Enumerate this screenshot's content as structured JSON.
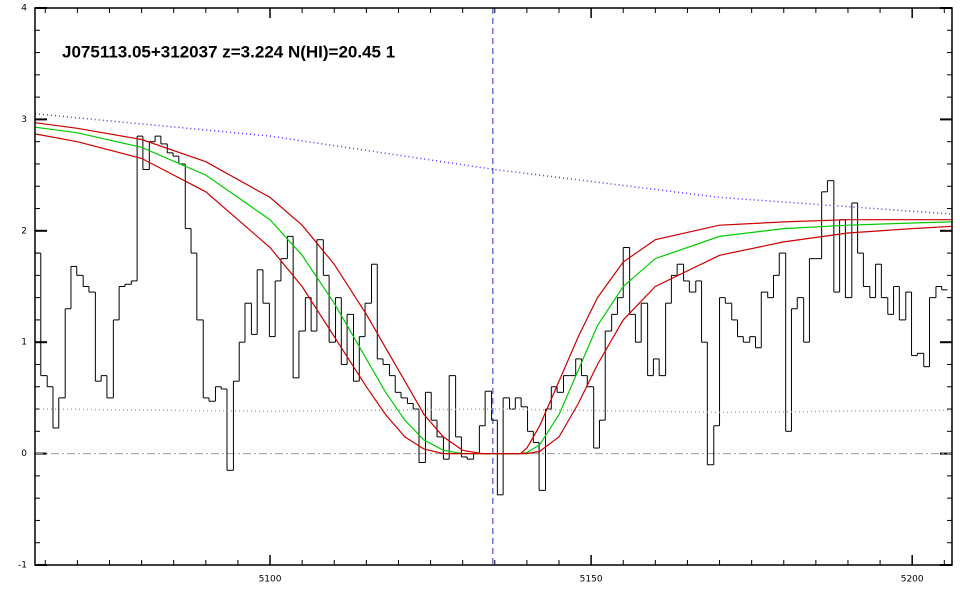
{
  "chart_data": {
    "type": "line",
    "title": "J075113.05+312037 z=3.224 N(HI)=20.45 1",
    "xlim": [
      5063.4,
      5206.2
    ],
    "ylim": [
      -1,
      4
    ],
    "xticks": [
      5100,
      5150,
      5200
    ],
    "yticks": [
      -1,
      0,
      1,
      2,
      3,
      4
    ],
    "minor_ticks": {
      "x": 10,
      "y": 5
    },
    "vline": {
      "value": 5134.7,
      "color": "#2030d0"
    },
    "hline": {
      "value": 0,
      "color": "#999999"
    },
    "series": [
      {
        "color": "#000000",
        "style": "steps",
        "x": [
          5063.4,
          5064.3,
          5065.3,
          5066.2,
          5067.1,
          5068.1,
          5069.0,
          5069.9,
          5070.9,
          5071.8,
          5072.8,
          5073.7,
          5074.6,
          5075.6,
          5076.5,
          5077.4,
          5078.4,
          5079.3,
          5080.2,
          5081.2,
          5082.1,
          5083.0,
          5084.0,
          5084.9,
          5085.8,
          5086.8,
          5087.7,
          5088.6,
          5089.6,
          5090.5,
          5091.5,
          5092.4,
          5093.3,
          5094.3,
          5095.2,
          5096.1,
          5097.1,
          5098.0,
          5098.9,
          5099.9,
          5100.8,
          5101.7,
          5102.7,
          5103.6,
          5104.5,
          5105.5,
          5106.4,
          5107.3,
          5108.3,
          5109.2,
          5110.2,
          5111.1,
          5112.0,
          5113.0,
          5113.9,
          5114.8,
          5115.8,
          5116.7,
          5117.6,
          5118.6,
          5119.5,
          5120.4,
          5121.4,
          5122.3,
          5123.2,
          5124.2,
          5125.1,
          5126.0,
          5127.0,
          5127.9,
          5128.9,
          5129.8,
          5130.7,
          5131.7,
          5132.6,
          5133.5,
          5134.5,
          5135.4,
          5136.3,
          5137.3,
          5138.2,
          5139.1,
          5140.1,
          5141.0,
          5141.9,
          5142.9,
          5143.8,
          5144.7,
          5145.7,
          5146.6,
          5147.6,
          5148.5,
          5149.4,
          5150.4,
          5151.3,
          5152.2,
          5153.2,
          5154.1,
          5155.0,
          5156.0,
          5156.9,
          5157.8,
          5158.8,
          5159.7,
          5160.6,
          5161.6,
          5162.5,
          5163.4,
          5164.4,
          5165.3,
          5166.3,
          5167.2,
          5168.1,
          5169.1,
          5170.0,
          5170.9,
          5171.9,
          5172.8,
          5173.7,
          5174.7,
          5175.6,
          5176.5,
          5177.5,
          5178.4,
          5179.3,
          5180.3,
          5181.2,
          5182.1,
          5183.1,
          5184.0,
          5185.0,
          5185.9,
          5186.8,
          5187.8,
          5188.7,
          5189.6,
          5190.6,
          5191.5,
          5192.4,
          5193.4,
          5194.3,
          5195.2,
          5196.2,
          5197.1,
          5198.0,
          5199.0,
          5199.9,
          5200.8,
          5201.8,
          5202.7,
          5203.7,
          5204.6
        ],
        "values": [
          1.8,
          0.7,
          0.6,
          0.23,
          0.5,
          1.3,
          1.68,
          1.6,
          1.5,
          1.45,
          0.65,
          0.7,
          0.5,
          1.2,
          1.5,
          1.52,
          1.55,
          2.85,
          2.55,
          2.8,
          2.85,
          2.78,
          2.7,
          2.67,
          2.6,
          2.02,
          1.8,
          1.2,
          0.5,
          0.47,
          0.6,
          0.58,
          -0.15,
          0.65,
          1.0,
          1.35,
          1.07,
          1.65,
          1.35,
          1.05,
          1.55,
          1.75,
          1.95,
          0.68,
          1.1,
          1.4,
          1.1,
          1.92,
          1.6,
          1.0,
          1.4,
          0.8,
          1.25,
          0.65,
          1.05,
          1.35,
          1.7,
          0.85,
          0.8,
          0.7,
          0.55,
          0.5,
          0.45,
          0.4,
          -0.08,
          0.55,
          0.3,
          0.15,
          -0.05,
          0.7,
          0.15,
          -0.03,
          -0.05,
          0.0,
          0.25,
          0.56,
          0.3,
          -0.37,
          0.5,
          0.4,
          0.5,
          0.42,
          0.2,
          0.1,
          -0.33,
          0.4,
          0.6,
          0.55,
          0.7,
          0.7,
          0.85,
          0.7,
          0.6,
          0.05,
          0.3,
          1.1,
          1.25,
          1.4,
          1.85,
          1.25,
          1.0,
          1.35,
          0.7,
          0.85,
          0.7,
          1.35,
          1.6,
          1.7,
          1.55,
          1.45,
          1.55,
          1.0,
          -0.1,
          0.25,
          1.4,
          1.35,
          1.2,
          1.05,
          1.0,
          1.05,
          0.95,
          1.45,
          1.4,
          1.6,
          1.8,
          0.2,
          1.3,
          1.4,
          1.0,
          1.75,
          1.75,
          2.35,
          2.45,
          1.45,
          2.1,
          1.4,
          2.25,
          1.8,
          1.5,
          1.4,
          1.7,
          1.4,
          1.25,
          1.5,
          1.2,
          1.45,
          0.88,
          0.9,
          0.78,
          1.4,
          1.5,
          1.47
        ]
      },
      {
        "color": "#00cc00",
        "style": "solid",
        "x": [
          5063.4,
          5070,
          5080,
          5090,
          5100,
          5105,
          5110,
          5115,
          5118,
          5121,
          5124,
          5127,
          5130,
          5133,
          5136,
          5139,
          5140,
          5142,
          5145,
          5148,
          5151,
          5155,
          5160,
          5170,
          5180,
          5190,
          5200,
          5206.2
        ],
        "values": [
          2.93,
          2.88,
          2.75,
          2.5,
          2.1,
          1.78,
          1.35,
          0.85,
          0.55,
          0.3,
          0.12,
          0.03,
          0.0,
          0.0,
          0.0,
          0.0,
          0.01,
          0.08,
          0.35,
          0.75,
          1.15,
          1.5,
          1.75,
          1.95,
          2.02,
          2.05,
          2.07,
          2.08
        ]
      },
      {
        "color": "#cc0000",
        "style": "solid",
        "x": [
          5063.4,
          5070,
          5080,
          5090,
          5100,
          5105,
          5110,
          5115,
          5118,
          5121,
          5124,
          5127,
          5130,
          5133,
          5136,
          5139,
          5140,
          5142,
          5145,
          5148,
          5151,
          5155,
          5160,
          5170,
          5180,
          5190,
          5200,
          5206.2
        ],
        "values": [
          2.97,
          2.92,
          2.82,
          2.62,
          2.3,
          2.05,
          1.7,
          1.25,
          0.95,
          0.65,
          0.35,
          0.15,
          0.03,
          0.0,
          0.0,
          0.0,
          0.05,
          0.25,
          0.65,
          1.05,
          1.4,
          1.72,
          1.92,
          2.05,
          2.08,
          2.1,
          2.1,
          2.1
        ]
      },
      {
        "color": "#cc0000",
        "style": "solid",
        "x": [
          5063.4,
          5070,
          5080,
          5090,
          5100,
          5105,
          5110,
          5115,
          5118,
          5121,
          5124,
          5127,
          5130,
          5133,
          5136,
          5139,
          5140,
          5142,
          5145,
          5148,
          5151,
          5155,
          5160,
          5170,
          5180,
          5190,
          5200,
          5206.2
        ],
        "values": [
          2.87,
          2.8,
          2.65,
          2.35,
          1.85,
          1.5,
          1.05,
          0.6,
          0.35,
          0.15,
          0.04,
          0.0,
          0.0,
          0.0,
          0.0,
          0.0,
          0.0,
          0.02,
          0.15,
          0.45,
          0.8,
          1.2,
          1.5,
          1.78,
          1.9,
          1.98,
          2.02,
          2.04
        ]
      },
      {
        "color": "#5a2cff",
        "style": "dotted",
        "x": [
          5063.4,
          5100,
          5135,
          5170,
          5206.2
        ],
        "values": [
          3.05,
          2.85,
          2.55,
          2.3,
          2.15
        ]
      },
      {
        "color": "#ff8c40",
        "style": "dotted",
        "x": [
          5063.4,
          5100,
          5135,
          5170,
          5206.2
        ],
        "values": [
          0.4,
          0.38,
          0.4,
          0.37,
          0.39
        ]
      }
    ]
  }
}
